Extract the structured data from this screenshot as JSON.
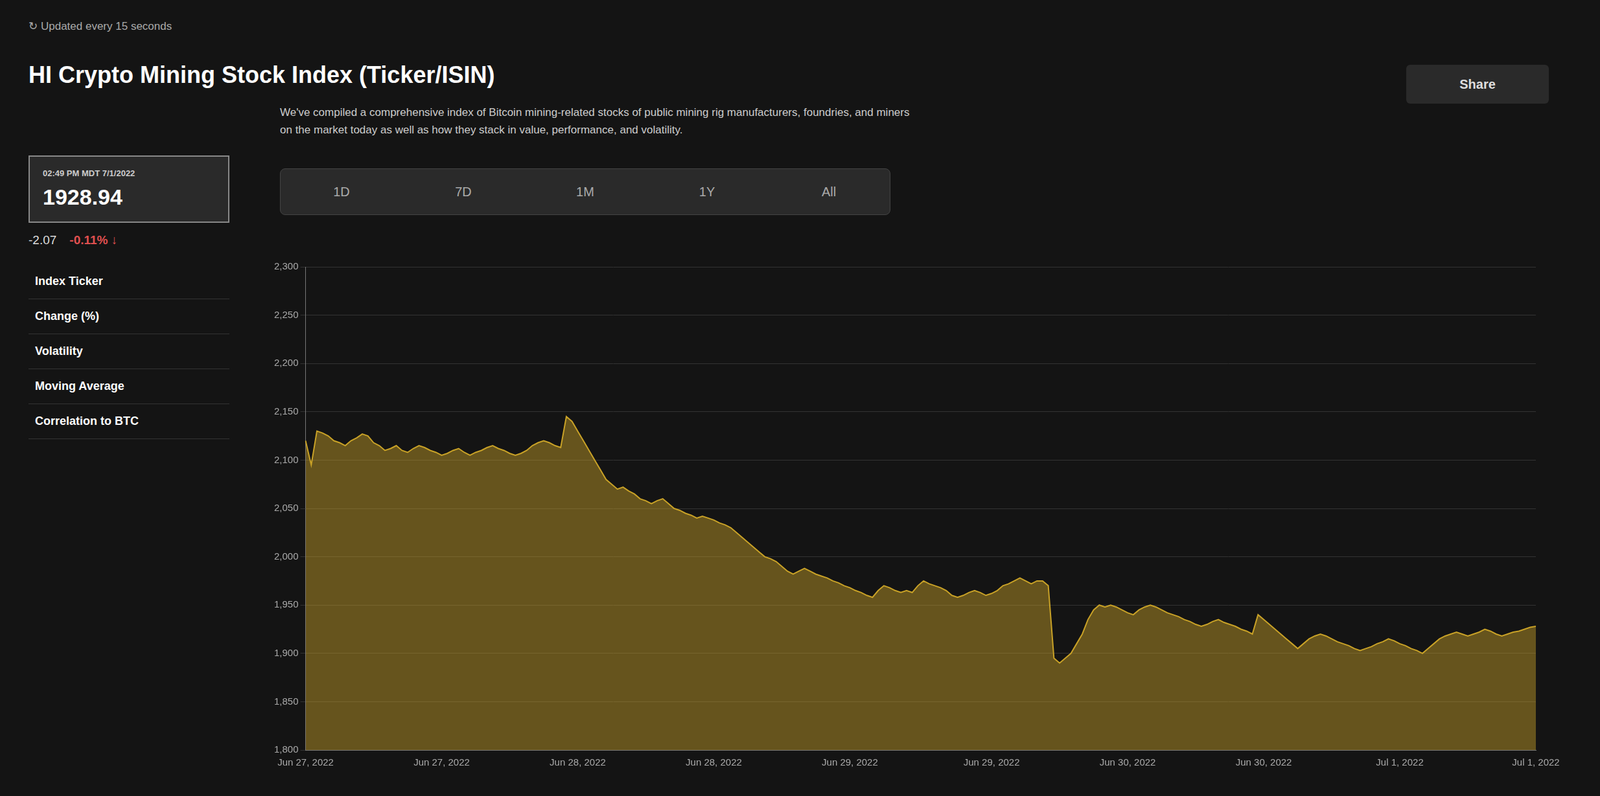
{
  "chart_data": {
    "type": "line",
    "title": "HI Crypto Mining Stock Index (Ticker/ISIN)",
    "subtitle": "↻  Updated every 15 seconds",
    "annotations": [
      "02:49 PM MDT 7/1/2022",
      "1928.94",
      "-2.07",
      "-0.11% ↓",
      "Index Ticker",
      "Change (%)",
      "Volatility",
      "Moving Average",
      "Correlation to BTC",
      "We've compiled a comprehensive index of Bitcoin mining-related stocks of public mining rig manufacturers, foundries, and miners\non the market today as well as how they stack in value, performance, and volatility.",
      "Share",
      "1D",
      "7D",
      "1M",
      "1Y",
      "All"
    ],
    "color": "#C9A227",
    "categories": [
      "Jun 27, 2022",
      null,
      null,
      null,
      null,
      null,
      null,
      null,
      null,
      null,
      null,
      null,
      null,
      null,
      null,
      null,
      null,
      null,
      null,
      null,
      null,
      null,
      null,
      null,
      "Jun 27, 2022",
      null,
      null,
      null,
      null,
      null,
      null,
      null,
      null,
      null,
      null,
      null,
      null,
      null,
      null,
      null,
      null,
      null,
      null,
      null,
      null,
      null,
      null,
      null,
      "Jun 28, 2022",
      null,
      null,
      null,
      null,
      null,
      null,
      null,
      null,
      null,
      null,
      null,
      null,
      null,
      null,
      null,
      null,
      null,
      null,
      null,
      null,
      null,
      null,
      null,
      "Jun 28, 2022",
      null,
      null,
      null,
      null,
      null,
      null,
      null,
      null,
      null,
      null,
      null,
      null,
      null,
      null,
      null,
      null,
      null,
      null,
      null,
      null,
      null,
      null,
      null,
      "Jun 29, 2022",
      null,
      null,
      null,
      null,
      null,
      null,
      null,
      null,
      null,
      null,
      null,
      null,
      null,
      null,
      null,
      null,
      null,
      null,
      null,
      null,
      null,
      null,
      null,
      null,
      "Jun 29, 2022",
      null,
      null,
      null,
      null,
      null,
      null,
      null,
      null,
      null,
      null,
      null,
      null,
      null,
      null,
      null,
      null,
      null,
      null,
      null,
      null,
      null,
      null,
      null,
      "Jun 30, 2022",
      null,
      null,
      null,
      null,
      null,
      null,
      null,
      null,
      null,
      null,
      null,
      null,
      null,
      null,
      null,
      null,
      null,
      null,
      null,
      null,
      null,
      null,
      null,
      "Jun 30, 2022",
      null,
      null,
      null,
      null,
      null,
      null,
      null,
      null,
      null,
      null,
      null,
      null,
      null,
      null,
      null,
      null,
      null,
      null,
      null,
      null,
      null,
      null,
      null,
      "Jul 1, 2022",
      null,
      null,
      null,
      null,
      null,
      null,
      null,
      null,
      null,
      null,
      null,
      null,
      null,
      null,
      null,
      null,
      null,
      null,
      null,
      null,
      null,
      null,
      null,
      "Jul 1, 2022"
    ],
    "values": [
      2120,
      2095,
      2130,
      2128,
      2125,
      2120,
      2118,
      2115,
      2120,
      2123,
      2127,
      2125,
      2118,
      2115,
      2110,
      2112,
      2115,
      2110,
      2108,
      2112,
      2115,
      2113,
      2110,
      2108,
      2105,
      2107,
      2110,
      2112,
      2108,
      2105,
      2108,
      2110,
      2113,
      2115,
      2112,
      2110,
      2107,
      2105,
      2107,
      2110,
      2115,
      2118,
      2120,
      2118,
      2115,
      2113,
      2145,
      2140,
      2130,
      2120,
      2110,
      2100,
      2090,
      2080,
      2075,
      2070,
      2072,
      2068,
      2065,
      2060,
      2058,
      2055,
      2058,
      2060,
      2055,
      2050,
      2048,
      2045,
      2043,
      2040,
      2042,
      2040,
      2038,
      2035,
      2033,
      2030,
      2025,
      2020,
      2015,
      2010,
      2005,
      2000,
      1998,
      1995,
      1990,
      1985,
      1982,
      1985,
      1988,
      1985,
      1982,
      1980,
      1978,
      1975,
      1973,
      1970,
      1968,
      1965,
      1963,
      1960,
      1958,
      1965,
      1970,
      1968,
      1965,
      1963,
      1965,
      1963,
      1970,
      1975,
      1972,
      1970,
      1968,
      1965,
      1960,
      1958,
      1960,
      1963,
      1965,
      1963,
      1960,
      1962,
      1965,
      1970,
      1972,
      1975,
      1978,
      1975,
      1972,
      1975,
      1975,
      1970,
      1895,
      1890,
      1895,
      1900,
      1910,
      1920,
      1935,
      1945,
      1950,
      1948,
      1950,
      1948,
      1945,
      1942,
      1940,
      1945,
      1948,
      1950,
      1948,
      1945,
      1942,
      1940,
      1938,
      1935,
      1933,
      1930,
      1928,
      1930,
      1933,
      1935,
      1932,
      1930,
      1928,
      1925,
      1923,
      1920,
      1940,
      1935,
      1930,
      1925,
      1920,
      1915,
      1910,
      1905,
      1910,
      1915,
      1918,
      1920,
      1918,
      1915,
      1912,
      1910,
      1908,
      1905,
      1903,
      1905,
      1907,
      1910,
      1912,
      1915,
      1913,
      1910,
      1908,
      1905,
      1903,
      1900,
      1905,
      1910,
      1915,
      1918,
      1920,
      1922,
      1920,
      1918,
      1920,
      1922,
      1925,
      1923,
      1920,
      1918,
      1920,
      1922,
      1923,
      1925,
      1927,
      1928
    ],
    "ylim": [
      1800,
      2300
    ],
    "yticks": [
      {
        "value": 1800,
        "label": "1,800"
      },
      {
        "value": 1850,
        "label": "1,850"
      },
      {
        "value": 1900,
        "label": "1,900"
      },
      {
        "value": 1950,
        "label": "1,950"
      },
      {
        "value": 2000,
        "label": "2,000"
      },
      {
        "value": 2050,
        "label": "2,050"
      },
      {
        "value": 2100,
        "label": "2,100"
      },
      {
        "value": 2150,
        "label": "2,150"
      },
      {
        "value": 2200,
        "label": "2,200"
      },
      {
        "value": 2250,
        "label": "2,250"
      },
      {
        "value": 2300,
        "label": "2,300"
      }
    ],
    "grid": true
  }
}
